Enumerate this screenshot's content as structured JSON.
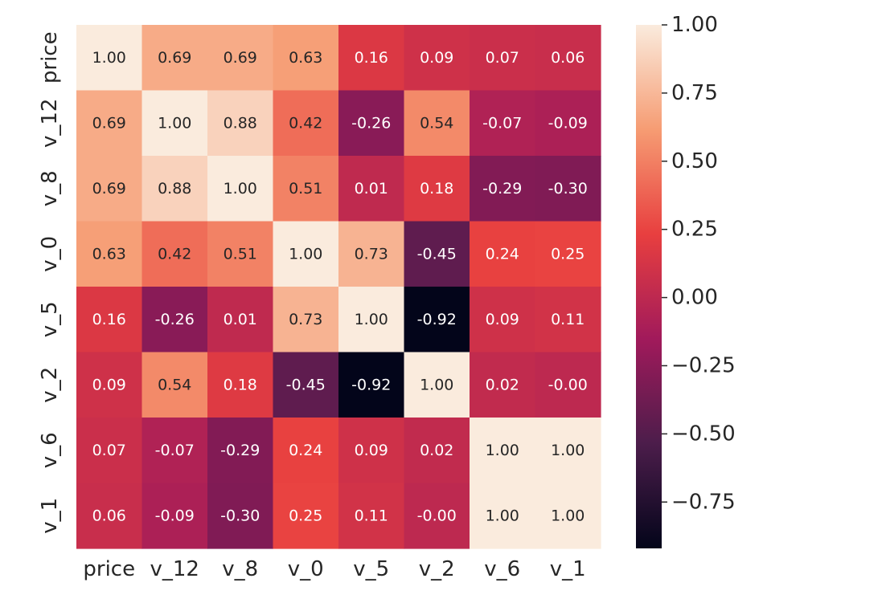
{
  "chart_data": {
    "type": "heatmap",
    "title": "",
    "xlabel": "",
    "ylabel": "",
    "x_categories": [
      "price",
      "v_12",
      "v_8",
      "v_0",
      "v_5",
      "v_2",
      "v_6",
      "v_1"
    ],
    "y_categories": [
      "price",
      "v_12",
      "v_8",
      "v_0",
      "v_5",
      "v_2",
      "v_6",
      "v_1"
    ],
    "values": [
      [
        1.0,
        0.69,
        0.69,
        0.63,
        0.16,
        0.09,
        0.07,
        0.06
      ],
      [
        0.69,
        1.0,
        0.88,
        0.42,
        -0.26,
        0.54,
        -0.07,
        -0.09
      ],
      [
        0.69,
        0.88,
        1.0,
        0.51,
        0.01,
        0.18,
        -0.29,
        -0.3
      ],
      [
        0.63,
        0.42,
        0.51,
        1.0,
        0.73,
        -0.45,
        0.24,
        0.25
      ],
      [
        0.16,
        -0.26,
        0.01,
        0.73,
        1.0,
        -0.92,
        0.09,
        0.11
      ],
      [
        0.09,
        0.54,
        0.18,
        -0.45,
        -0.92,
        1.0,
        0.02,
        -0.0
      ],
      [
        0.07,
        -0.07,
        -0.29,
        0.24,
        0.09,
        0.02,
        1.0,
        1.0
      ],
      [
        0.06,
        -0.09,
        -0.3,
        0.25,
        0.11,
        -0.0,
        1.0,
        1.0
      ]
    ],
    "value_labels": [
      [
        "1.00",
        "0.69",
        "0.69",
        "0.63",
        "0.16",
        "0.09",
        "0.07",
        "0.06"
      ],
      [
        "0.69",
        "1.00",
        "0.88",
        "0.42",
        "-0.26",
        "0.54",
        "-0.07",
        "-0.09"
      ],
      [
        "0.69",
        "0.88",
        "1.00",
        "0.51",
        "0.01",
        "0.18",
        "-0.29",
        "-0.30"
      ],
      [
        "0.63",
        "0.42",
        "0.51",
        "1.00",
        "0.73",
        "-0.45",
        "0.24",
        "0.25"
      ],
      [
        "0.16",
        "-0.26",
        "0.01",
        "0.73",
        "1.00",
        "-0.92",
        "0.09",
        "0.11"
      ],
      [
        "0.09",
        "0.54",
        "0.18",
        "-0.45",
        "-0.92",
        "1.00",
        "0.02",
        "-0.00"
      ],
      [
        "0.07",
        "-0.07",
        "-0.29",
        "0.24",
        "0.09",
        "0.02",
        "1.00",
        "1.00"
      ],
      [
        "0.06",
        "-0.09",
        "-0.30",
        "0.25",
        "0.11",
        "-0.00",
        "1.00",
        "1.00"
      ]
    ],
    "colorbar": {
      "range": [
        -0.92,
        1.0
      ],
      "ticks": [
        1.0,
        0.75,
        0.5,
        0.25,
        0.0,
        -0.25,
        -0.5,
        -0.75
      ],
      "tick_labels": [
        "1.00",
        "0.75",
        "0.50",
        "0.25",
        "0.00",
        "−0.25",
        "−0.50",
        "−0.75"
      ]
    },
    "colormap": "rocket",
    "colormap_stops": [
      "#03051a",
      "#4c1d4b",
      "#a11a5b",
      "#e83f3f",
      "#f69c73",
      "#faebdd"
    ],
    "annotation_text_dark": "#262626",
    "annotation_text_light": "#ffffff",
    "grid": false,
    "legend": "colorbar-right"
  }
}
